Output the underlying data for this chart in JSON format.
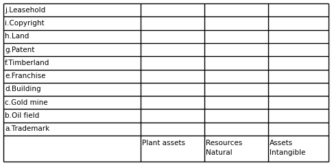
{
  "col_headers_line1": [
    "",
    "",
    "Natural",
    "Intangible"
  ],
  "col_headers_line2": [
    "",
    "Plant assets",
    "Resources",
    "Assets"
  ],
  "rows": [
    "a.Trademark",
    "b.Oil field",
    "c.Gold mine",
    "d.Building",
    "e.Franchise",
    "f.Timberland",
    "g.Patent",
    "h.Land",
    "i.Copyright",
    "j.Leasehold"
  ],
  "bg_color": "#ffffff",
  "border_color": "#000000",
  "text_color": "#000000",
  "font_size": 7.5,
  "header_font_size": 7.5
}
